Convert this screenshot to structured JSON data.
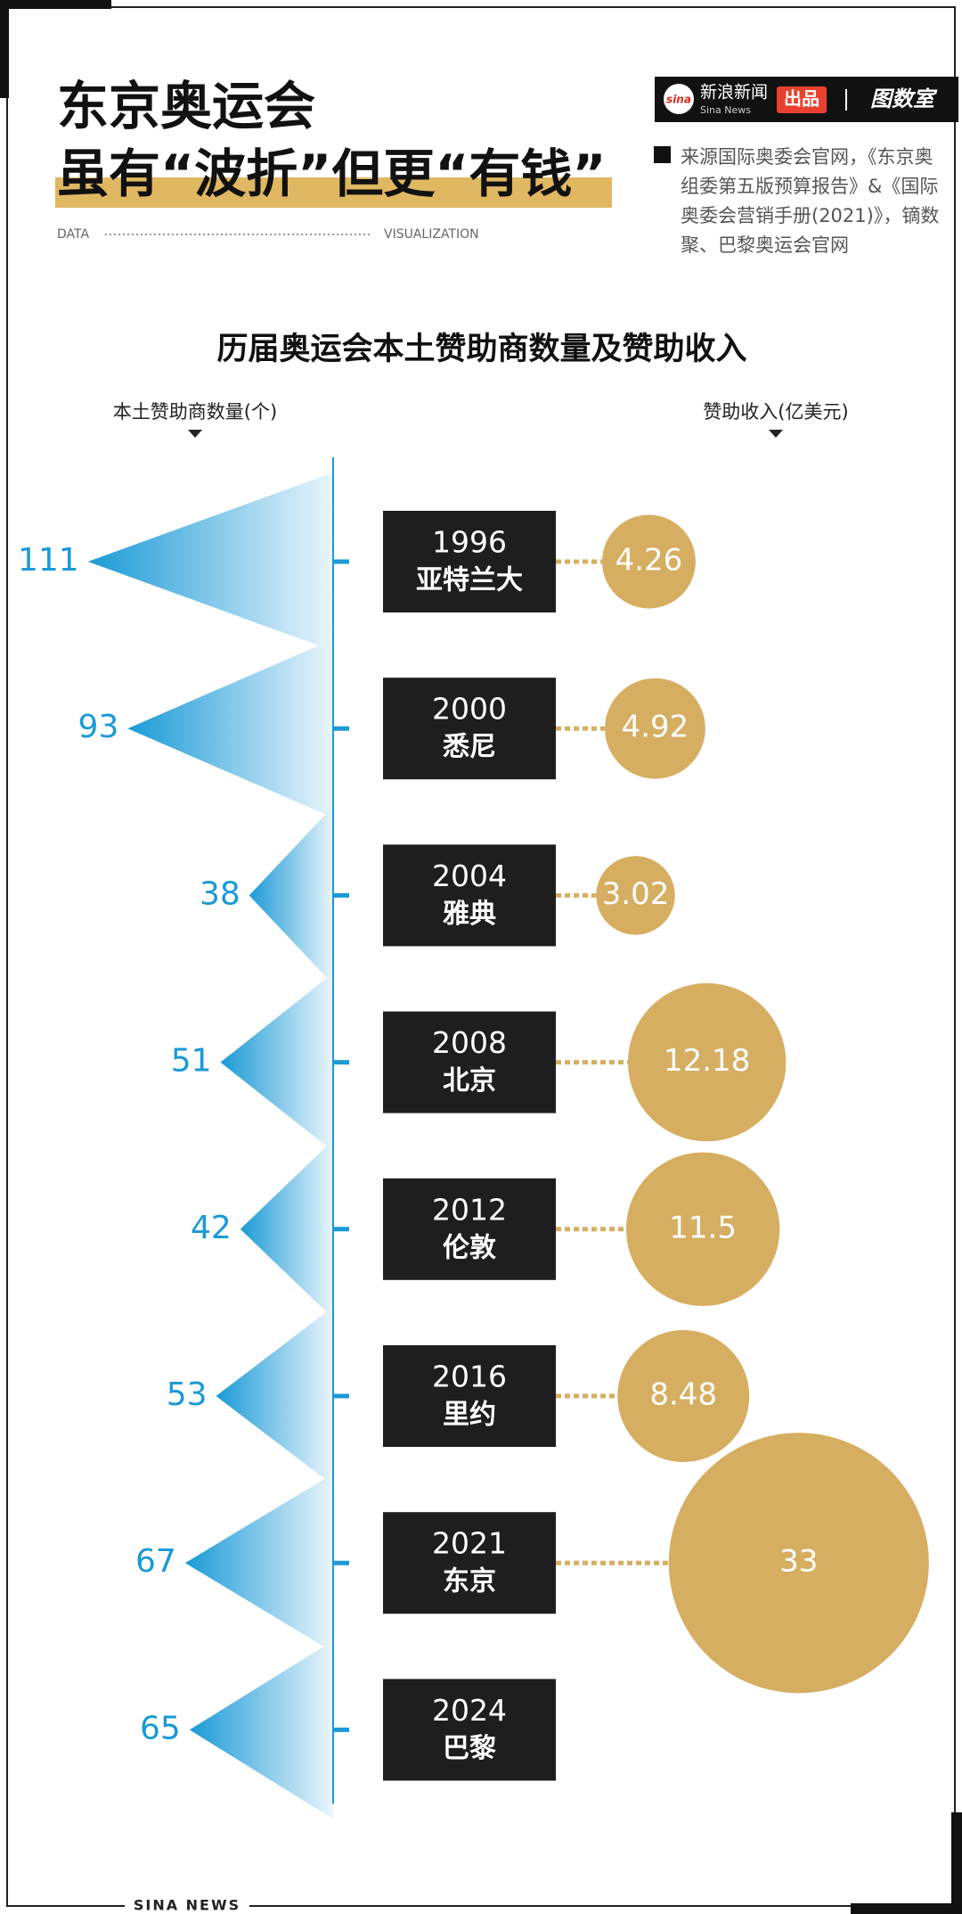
{
  "header": {
    "title_line1": "东京奥运会",
    "title_line2": "虽有“波折”但更“有钱”",
    "data_label": "DATA",
    "viz_label": "VISUALIZATION",
    "logo": "sina",
    "brand": "新浪新闻",
    "brand_en": "Sina News",
    "brand_tag": "出品",
    "brand2": "图数室",
    "source": "来源国际奥委会官网，《东京奥组委第五版预算报告》&《国际奥委会营销手册(2021)》，镝数聚、巴黎奥运会官网"
  },
  "chart_data": {
    "type": "triangle-bubble",
    "title": "历届奥运会本土赞助商数量及赞助收入",
    "categories": [
      "1996",
      "2000",
      "2004",
      "2008",
      "2012",
      "2016",
      "2021",
      "2024"
    ],
    "cities": [
      "亚特兰大",
      "悉尼",
      "雅典",
      "北京",
      "伦敦",
      "里约",
      "东京",
      "巴黎"
    ],
    "series": [
      {
        "name": "本土赞助商数量(个)",
        "color": "#1a9ad6",
        "values": [
          111,
          93,
          38,
          51,
          42,
          53,
          67,
          65
        ]
      },
      {
        "name": "赞助收入(亿美元)",
        "color": "#d6ae62",
        "values": [
          4.26,
          4.92,
          3.02,
          12.18,
          11.5,
          8.48,
          33,
          null
        ]
      }
    ]
  },
  "footer": "SINA NEWS"
}
